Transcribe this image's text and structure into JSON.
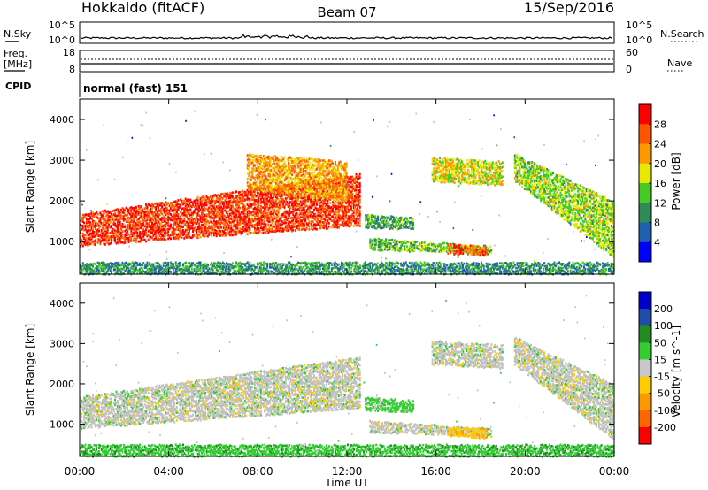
{
  "header": {
    "station": "Hokkaido (fitACF)",
    "beam": "Beam 07",
    "date": "15/Sep/2016"
  },
  "left_labels": {
    "nsky": "N.Sky",
    "freq_line1": "Freq.",
    "freq_line2": "[MHz]",
    "cpid": "CPID"
  },
  "right_labels": {
    "nsearch": "N.Search",
    "nave": "Nave"
  },
  "noise_panel": {
    "left_ticks": [
      "10^5",
      "10^0"
    ],
    "right_ticks": [
      "10^5",
      "10^0"
    ]
  },
  "freq_panel": {
    "left_ticks": [
      "18",
      "8"
    ],
    "right_ticks": [
      "60",
      "0"
    ]
  },
  "cpid_text": "normal (fast) 151",
  "colors": {
    "power": [
      "#0000ff",
      "#2060b0",
      "#2e8b57",
      "#44cc22",
      "#e8e800",
      "#ff9900",
      "#ff5500",
      "#ff0000"
    ],
    "velocity": [
      "#ff0000",
      "#ff6600",
      "#ff9900",
      "#ffcc00",
      "#c8c8c8",
      "#33cc33",
      "#228b22",
      "#1e4fa8",
      "#0000cc"
    ],
    "gray_scatter": "#c0c0c0"
  },
  "chart_data": [
    {
      "type": "heatmap",
      "title": "",
      "xlabel": "",
      "ylabel": "Slant Range [km]",
      "x_ticks": [
        "00:00",
        "04:00",
        "08:00",
        "12:00",
        "16:00",
        "20:00",
        "00:00"
      ],
      "y_ticks": [
        "1000",
        "2000",
        "3000",
        "4000"
      ],
      "ylim": [
        200,
        4500
      ],
      "colorbar": {
        "label": "Power [dB]",
        "ticks": [
          "4",
          "8",
          "12",
          "16",
          "20",
          "24",
          "28"
        ],
        "range": [
          0,
          32
        ]
      },
      "regions": [
        {
          "t_start": 0,
          "t_end": 12.6,
          "range_low_start": 900,
          "range_high_start": 1700,
          "range_low_end": 1400,
          "range_high_end": 2700,
          "level": 28
        },
        {
          "t_start": 12.8,
          "t_end": 15.0,
          "range_low_start": 1350,
          "range_high_start": 1700,
          "range_low_end": 1300,
          "range_high_end": 1600,
          "level": 12
        },
        {
          "t_start": 13.0,
          "t_end": 18.5,
          "range_low_start": 800,
          "range_high_start": 1100,
          "range_low_end": 700,
          "range_high_end": 900,
          "level": 14
        },
        {
          "t_start": 16.5,
          "t_end": 18.3,
          "range_low_start": 700,
          "range_high_start": 950,
          "range_low_end": 650,
          "range_high_end": 900,
          "level": 26
        },
        {
          "t_start": 15.8,
          "t_end": 19.0,
          "range_low_start": 2500,
          "range_high_start": 3100,
          "range_low_end": 2400,
          "range_high_end": 3000,
          "level": 18
        },
        {
          "t_start": 19.5,
          "t_end": 24.0,
          "range_low_start": 2500,
          "range_high_start": 3200,
          "range_low_end": 600,
          "range_high_end": 2000,
          "level": 16
        },
        {
          "t_start": 7.5,
          "t_end": 12.0,
          "range_low_start": 2300,
          "range_high_start": 3200,
          "range_low_end": 2000,
          "range_high_end": 3000,
          "level": 22
        },
        {
          "t_start": 0,
          "t_end": 24.0,
          "range_low_start": 200,
          "range_high_start": 500,
          "range_low_end": 200,
          "range_high_end": 500,
          "level": 10
        }
      ]
    },
    {
      "type": "heatmap",
      "title": "",
      "xlabel": "Time UT",
      "ylabel": "Slant Range [km]",
      "x_ticks": [
        "00:00",
        "04:00",
        "08:00",
        "12:00",
        "16:00",
        "20:00",
        "00:00"
      ],
      "y_ticks": [
        "1000",
        "2000",
        "3000",
        "4000"
      ],
      "ylim": [
        200,
        4500
      ],
      "colorbar": {
        "label": "Velocity [m s^-1]",
        "ticks": [
          "200",
          "100",
          "50",
          "15",
          "-15",
          "-50",
          "-100",
          "-200"
        ],
        "range": [
          -250,
          250
        ]
      },
      "regions": [
        {
          "t_start": 0,
          "t_end": 12.6,
          "range_low_start": 900,
          "range_high_start": 1700,
          "range_low_end": 1400,
          "range_high_end": 2700,
          "level": 0
        },
        {
          "t_start": 12.8,
          "t_end": 15.0,
          "range_low_start": 1350,
          "range_high_start": 1700,
          "range_low_end": 1300,
          "range_high_end": 1600,
          "level": 30
        },
        {
          "t_start": 13.0,
          "t_end": 18.5,
          "range_low_start": 800,
          "range_high_start": 1100,
          "range_low_end": 700,
          "range_high_end": 900,
          "level": 0
        },
        {
          "t_start": 16.5,
          "t_end": 18.3,
          "range_low_start": 700,
          "range_high_start": 950,
          "range_low_end": 650,
          "range_high_end": 900,
          "level": -40
        },
        {
          "t_start": 15.8,
          "t_end": 19.0,
          "range_low_start": 2500,
          "range_high_start": 3100,
          "range_low_end": 2400,
          "range_high_end": 3000,
          "level": 0
        },
        {
          "t_start": 19.5,
          "t_end": 24.0,
          "range_low_start": 2500,
          "range_high_start": 3200,
          "range_low_end": 600,
          "range_high_end": 2000,
          "level": 0
        },
        {
          "t_start": 0,
          "t_end": 24.0,
          "range_low_start": 200,
          "range_high_start": 500,
          "range_low_end": 200,
          "range_high_end": 500,
          "level": 40
        }
      ]
    }
  ]
}
